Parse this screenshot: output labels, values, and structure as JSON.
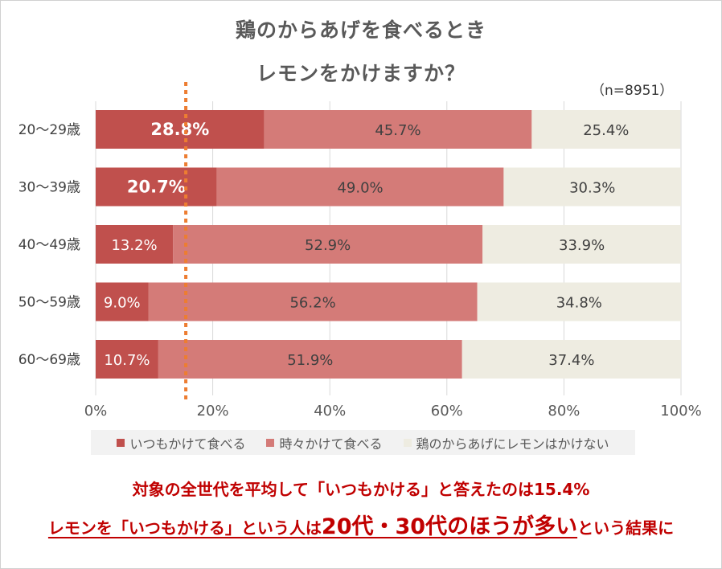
{
  "title_line1": "鶏のからあげを食べるとき",
  "title_line2": "レモンをかけますか？",
  "sample_size": "（n=8951）",
  "colors": {
    "always": "#c0504d",
    "sometimes": "#d47b78",
    "never": "#eeece1",
    "average_line": "#ed7d31",
    "footer_text": "#c00000"
  },
  "chart_data": {
    "type": "bar",
    "orientation": "horizontal",
    "stacked": "percent",
    "categories": [
      "20～29歳",
      "30～39歳",
      "40～49歳",
      "50～59歳",
      "60～69歳"
    ],
    "series": [
      {
        "name": "いつもかけて食べる",
        "values": [
          28.8,
          20.7,
          13.2,
          9.0,
          10.7
        ],
        "labels": [
          "28.8%",
          "20.7%",
          "13.2%",
          "9.0%",
          "10.7%"
        ]
      },
      {
        "name": "時々かけて食べる",
        "values": [
          45.7,
          49.0,
          52.9,
          56.2,
          51.9
        ],
        "labels": [
          "45.7%",
          "49.0%",
          "52.9%",
          "56.2%",
          "51.9%"
        ]
      },
      {
        "name": "鶏のからあげにレモンはかけない",
        "values": [
          25.4,
          30.3,
          33.9,
          34.8,
          37.4
        ],
        "labels": [
          "25.4%",
          "30.3%",
          "33.9%",
          "34.8%",
          "37.4%"
        ]
      }
    ],
    "highlighted_labels": [
      0,
      1
    ],
    "xlim": [
      0,
      100
    ],
    "xticks": [
      "0%",
      "20%",
      "40%",
      "60%",
      "80%",
      "100%"
    ],
    "x_tick_values": [
      0,
      20,
      40,
      60,
      80,
      100
    ],
    "average_line_value": 15.4,
    "grid": true,
    "legend_position": "bottom"
  },
  "footer": {
    "line1": "対象の全世代を平均して「いつもかける」と答えたのは15.4%",
    "line2_part1": "レモンを「いつもかける」という人は",
    "line2_big": "20代・30代のほうが多い",
    "line2_part2": "という結果に"
  }
}
